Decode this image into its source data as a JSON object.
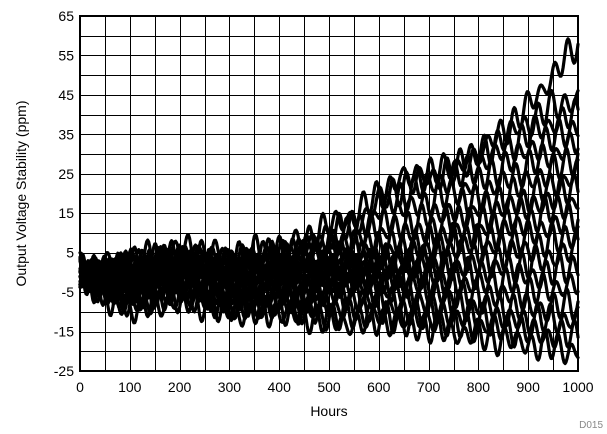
{
  "figure_id": "D015",
  "chart_data": {
    "type": "line",
    "title": "",
    "xlabel": "Hours",
    "ylabel": "Output Voltage Stability (ppm)",
    "xlim": [
      0,
      1000
    ],
    "ylim": [
      -25,
      65
    ],
    "xticks": [
      0,
      100,
      200,
      300,
      400,
      500,
      600,
      700,
      800,
      900,
      1000
    ],
    "xtick_labels": [
      "0",
      "100",
      "200",
      "300",
      "400",
      "500",
      "600",
      "700",
      "800",
      "900",
      "1000"
    ],
    "yticks": [
      -25,
      -15,
      -5,
      5,
      15,
      25,
      35,
      45,
      55,
      65
    ],
    "ytick_labels": [
      "-25",
      "-15",
      "-5",
      "5",
      "15",
      "25",
      "35",
      "45",
      "55",
      "65"
    ],
    "grid": true,
    "legend": "none",
    "line_color": "#000000",
    "series": [
      {
        "x": [
          0,
          50,
          100,
          150,
          200,
          250,
          300,
          350,
          400,
          450,
          500,
          550,
          600,
          650,
          700,
          750,
          800,
          850,
          900,
          950,
          1000
        ],
        "values": [
          0,
          -1,
          1,
          2,
          3,
          2,
          1,
          3,
          4,
          6,
          10,
          12,
          18,
          22,
          24,
          26,
          30,
          36,
          42,
          50,
          58
        ]
      },
      {
        "x": [
          0,
          50,
          100,
          150,
          200,
          250,
          300,
          350,
          400,
          450,
          500,
          550,
          600,
          650,
          700,
          750,
          800,
          850,
          900,
          950,
          1000
        ],
        "values": [
          1,
          2,
          3,
          4,
          6,
          5,
          4,
          5,
          6,
          8,
          12,
          14,
          20,
          24,
          25,
          27,
          30,
          34,
          38,
          42,
          44
        ]
      },
      {
        "x": [
          0,
          50,
          100,
          150,
          200,
          250,
          300,
          350,
          400,
          450,
          500,
          550,
          600,
          650,
          700,
          750,
          800,
          850,
          900,
          950,
          1000
        ],
        "values": [
          0,
          1,
          2,
          3,
          4,
          4,
          3,
          4,
          5,
          6,
          8,
          10,
          15,
          20,
          22,
          24,
          27,
          31,
          35,
          38,
          40
        ]
      },
      {
        "x": [
          0,
          50,
          100,
          150,
          200,
          250,
          300,
          350,
          400,
          450,
          500,
          550,
          600,
          650,
          700,
          750,
          800,
          850,
          900,
          950,
          1000
        ],
        "values": [
          -1,
          0,
          1,
          3,
          4,
          3,
          2,
          3,
          4,
          5,
          6,
          8,
          12,
          16,
          18,
          20,
          23,
          27,
          31,
          34,
          37
        ]
      },
      {
        "x": [
          0,
          50,
          100,
          150,
          200,
          250,
          300,
          350,
          400,
          450,
          500,
          550,
          600,
          650,
          700,
          750,
          800,
          850,
          900,
          950,
          1000
        ],
        "values": [
          0,
          0,
          2,
          2,
          3,
          2,
          1,
          2,
          3,
          4,
          5,
          6,
          9,
          12,
          14,
          16,
          19,
          23,
          27,
          30,
          33
        ]
      },
      {
        "x": [
          0,
          50,
          100,
          150,
          200,
          250,
          300,
          350,
          400,
          450,
          500,
          550,
          600,
          650,
          700,
          750,
          800,
          850,
          900,
          950,
          1000
        ],
        "values": [
          1,
          0,
          1,
          2,
          3,
          2,
          0,
          1,
          2,
          2,
          3,
          4,
          6,
          9,
          11,
          13,
          16,
          19,
          23,
          26,
          29
        ]
      },
      {
        "x": [
          0,
          50,
          100,
          150,
          200,
          250,
          300,
          350,
          400,
          450,
          500,
          550,
          600,
          650,
          700,
          750,
          800,
          850,
          900,
          950,
          1000
        ],
        "values": [
          0,
          -1,
          0,
          1,
          2,
          1,
          0,
          0,
          1,
          1,
          2,
          3,
          4,
          6,
          8,
          10,
          13,
          16,
          19,
          22,
          25
        ]
      },
      {
        "x": [
          0,
          50,
          100,
          150,
          200,
          250,
          300,
          350,
          400,
          450,
          500,
          550,
          600,
          650,
          700,
          750,
          800,
          850,
          900,
          950,
          1000
        ],
        "values": [
          -1,
          -2,
          0,
          1,
          1,
          0,
          -1,
          0,
          1,
          0,
          1,
          2,
          3,
          4,
          6,
          8,
          10,
          13,
          16,
          19,
          22
        ]
      },
      {
        "x": [
          0,
          50,
          100,
          150,
          200,
          250,
          300,
          350,
          400,
          450,
          500,
          550,
          600,
          650,
          700,
          750,
          800,
          850,
          900,
          950,
          1000
        ],
        "values": [
          0,
          -2,
          -1,
          0,
          1,
          0,
          -2,
          -1,
          0,
          -1,
          0,
          1,
          2,
          3,
          4,
          6,
          8,
          10,
          13,
          16,
          18
        ]
      },
      {
        "x": [
          0,
          50,
          100,
          150,
          200,
          250,
          300,
          350,
          400,
          450,
          500,
          550,
          600,
          650,
          700,
          750,
          800,
          850,
          900,
          950,
          1000
        ],
        "values": [
          1,
          -1,
          -1,
          0,
          0,
          -1,
          -2,
          -2,
          -1,
          -2,
          -1,
          0,
          0,
          1,
          2,
          3,
          5,
          7,
          9,
          12,
          14
        ]
      },
      {
        "x": [
          0,
          50,
          100,
          150,
          200,
          250,
          300,
          350,
          400,
          450,
          500,
          550,
          600,
          650,
          700,
          750,
          800,
          850,
          900,
          950,
          1000
        ],
        "values": [
          0,
          -2,
          -2,
          -1,
          0,
          -1,
          -3,
          -3,
          -2,
          -3,
          -2,
          -1,
          -1,
          0,
          1,
          1,
          2,
          4,
          6,
          8,
          10
        ]
      },
      {
        "x": [
          0,
          50,
          100,
          150,
          200,
          250,
          300,
          350,
          400,
          450,
          500,
          550,
          600,
          650,
          700,
          750,
          800,
          850,
          900,
          950,
          1000
        ],
        "values": [
          0,
          -3,
          -3,
          -2,
          -1,
          -2,
          -4,
          -4,
          -3,
          -4,
          -3,
          -2,
          -2,
          -2,
          -1,
          -1,
          0,
          1,
          2,
          4,
          6
        ]
      },
      {
        "x": [
          0,
          50,
          100,
          150,
          200,
          250,
          300,
          350,
          400,
          450,
          500,
          550,
          600,
          650,
          700,
          750,
          800,
          850,
          900,
          950,
          1000
        ],
        "values": [
          -1,
          -3,
          -4,
          -3,
          -2,
          -3,
          -5,
          -5,
          -4,
          -5,
          -4,
          -3,
          -3,
          -3,
          -3,
          -3,
          -3,
          -2,
          -1,
          0,
          2
        ]
      },
      {
        "x": [
          0,
          50,
          100,
          150,
          200,
          250,
          300,
          350,
          400,
          450,
          500,
          550,
          600,
          650,
          700,
          750,
          800,
          850,
          900,
          950,
          1000
        ],
        "values": [
          0,
          -4,
          -5,
          -4,
          -3,
          -4,
          -6,
          -6,
          -5,
          -6,
          -5,
          -5,
          -5,
          -5,
          -5,
          -6,
          -6,
          -6,
          -5,
          -4,
          -3
        ]
      },
      {
        "x": [
          0,
          50,
          100,
          150,
          200,
          250,
          300,
          350,
          400,
          450,
          500,
          550,
          600,
          650,
          700,
          750,
          800,
          850,
          900,
          950,
          1000
        ],
        "values": [
          -1,
          -4,
          -6,
          -5,
          -4,
          -5,
          -7,
          -7,
          -6,
          -7,
          -7,
          -7,
          -7,
          -7,
          -8,
          -8,
          -9,
          -9,
          -9,
          -9,
          -8
        ]
      },
      {
        "x": [
          0,
          50,
          100,
          150,
          200,
          250,
          300,
          350,
          400,
          450,
          500,
          550,
          600,
          650,
          700,
          750,
          800,
          850,
          900,
          950,
          1000
        ],
        "values": [
          0,
          -5,
          -7,
          -6,
          -5,
          -6,
          -8,
          -8,
          -8,
          -9,
          -9,
          -9,
          -9,
          -10,
          -10,
          -11,
          -11,
          -12,
          -12,
          -12,
          -12
        ]
      },
      {
        "x": [
          0,
          50,
          100,
          150,
          200,
          250,
          300,
          350,
          400,
          450,
          500,
          550,
          600,
          650,
          700,
          750,
          800,
          850,
          900,
          950,
          1000
        ],
        "values": [
          -1,
          -6,
          -8,
          -7,
          -6,
          -7,
          -9,
          -9,
          -9,
          -10,
          -11,
          -11,
          -11,
          -12,
          -12,
          -13,
          -14,
          -14,
          -15,
          -16,
          -16
        ]
      },
      {
        "x": [
          0,
          50,
          100,
          150,
          200,
          250,
          300,
          350,
          400,
          450,
          500,
          550,
          600,
          650,
          700,
          750,
          800,
          850,
          900,
          950,
          1000
        ],
        "values": [
          0,
          -6,
          -9,
          -8,
          -7,
          -8,
          -10,
          -10,
          -10,
          -11,
          -12,
          -13,
          -12,
          -13,
          -14,
          -15,
          -16,
          -17,
          -18,
          -19,
          -20
        ]
      }
    ]
  }
}
